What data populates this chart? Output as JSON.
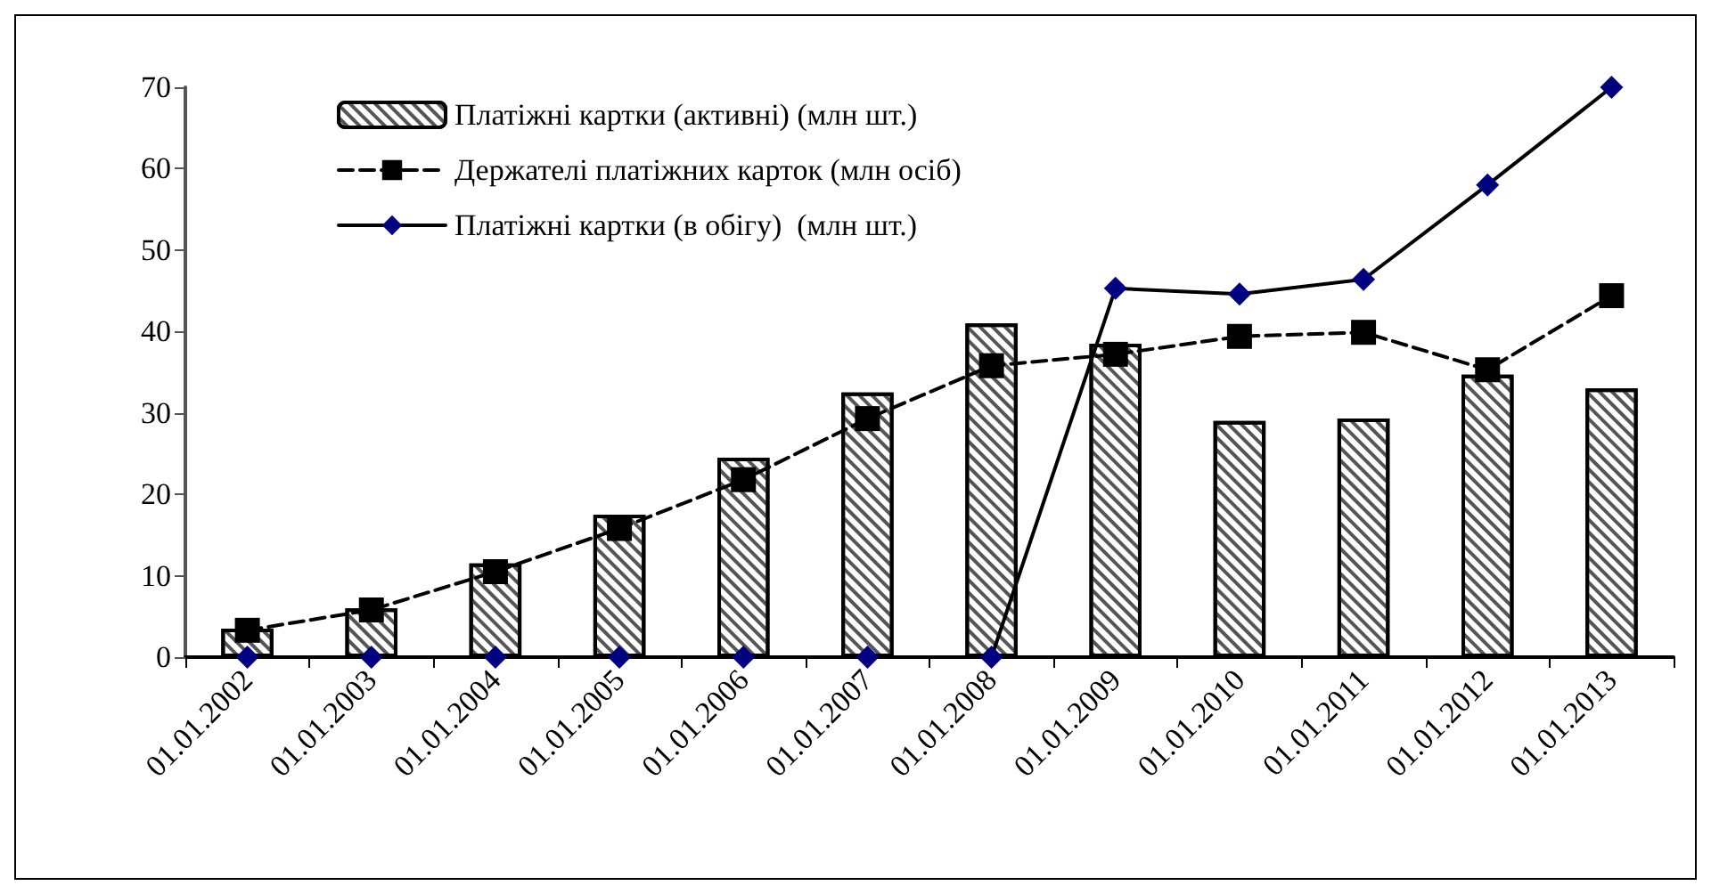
{
  "chart_data": {
    "type": "bar",
    "categories": [
      "01.01.2002",
      "01.01.2003",
      "01.01.2004",
      "01.01.2005",
      "01.01.2006",
      "01.01.2007",
      "01.01.2008",
      "01.01.2009",
      "01.01.2010",
      "01.01.2011",
      "01.01.2012",
      "01.01.2013"
    ],
    "series": [
      {
        "name": "Платіжні картки (активні) (млн шт.)",
        "color": "#ffffff",
        "values": [
          3.5,
          6,
          11.5,
          17.5,
          24.5,
          32.5,
          41,
          38.5,
          29,
          29.3,
          34.7,
          33
        ]
      },
      {
        "name": "Держателі платіжних карток (млн осіб)",
        "type": "line",
        "color": "#000000",
        "marker": "square",
        "line_style": "dashed",
        "values": [
          3.3,
          5.8,
          10.5,
          15.8,
          21.8,
          29.3,
          35.8,
          37.2,
          39.4,
          39.9,
          35.3,
          44.4
        ]
      },
      {
        "name": "Платіжні картки (в обігу)  (млн шт.)",
        "type": "line",
        "color": "#000080",
        "marker": "diamond",
        "line_style": "solid",
        "values": [
          0,
          0,
          0,
          0,
          0,
          0,
          0,
          45.3,
          44.6,
          46.4,
          58,
          70
        ]
      }
    ],
    "ylim": [
      0,
      70
    ],
    "yticks": [
      0,
      10,
      20,
      30,
      40,
      50,
      60,
      70
    ],
    "grid": false,
    "legend": "top"
  }
}
